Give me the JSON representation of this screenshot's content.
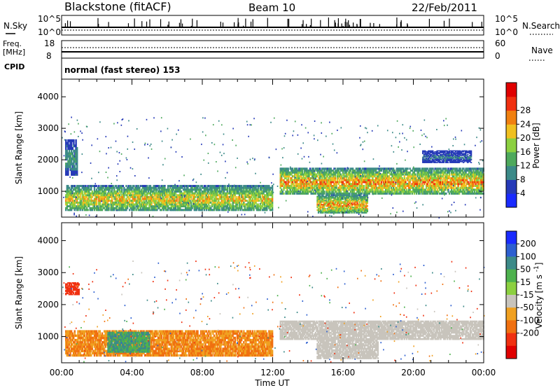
{
  "header": {
    "station": "Blackstone (fitACF)",
    "beam": "Beam 10",
    "date": "22/Feb/2011"
  },
  "nsky_panel": {
    "left_label": "N.Sky",
    "right_label": "N.Search",
    "left_ticks": [
      "10^5",
      "10^0"
    ],
    "right_ticks": [
      "10^5",
      "10^0"
    ]
  },
  "freq_panel": {
    "left_label_1": "Freq.",
    "left_label_2": "[MHz]",
    "right_label": "Nave",
    "left_ticks": [
      "18",
      "8"
    ],
    "right_ticks": [
      "60",
      "0"
    ]
  },
  "cpid": {
    "label": "CPID",
    "value": "normal (fast stereo) 153"
  },
  "chart_data": [
    {
      "type": "heatmap",
      "title": "",
      "xlabel": "",
      "ylabel": "Slant Range [km]",
      "xlim": [
        0,
        24
      ],
      "ylim": [
        180,
        4560
      ],
      "yticks": [
        1000,
        2000,
        3000,
        4000
      ],
      "colorbar": {
        "label": "Power [dB]",
        "ticks": [
          "4",
          "8",
          "12",
          "16",
          "20",
          "24",
          "28"
        ],
        "colors": [
          "#1a2bff",
          "#263ab8",
          "#3c8a88",
          "#4ea95c",
          "#8cd040",
          "#f0c020",
          "#f08010",
          "#f03010",
          "#e00000"
        ]
      },
      "echo_regions_km": [
        {
          "t0": 0.2,
          "t1": 12.0,
          "r_lo": 380,
          "r_hi": 1200,
          "peak_db": 24
        },
        {
          "t0": 0.2,
          "t1": 0.9,
          "r_lo": 1500,
          "r_hi": 2650,
          "peak_db": 12
        },
        {
          "t0": 12.4,
          "t1": 24.0,
          "r_lo": 900,
          "r_hi": 1750,
          "peak_db": 28
        },
        {
          "t0": 14.5,
          "t1": 17.4,
          "r_lo": 300,
          "r_hi": 900,
          "peak_db": 28
        },
        {
          "t0": 20.5,
          "t1": 23.3,
          "r_lo": 1900,
          "r_hi": 2300,
          "peak_db": 8
        }
      ]
    },
    {
      "type": "heatmap",
      "title": "",
      "xlabel": "Time UT",
      "ylabel": "Slant Range [km]",
      "xlim": [
        0,
        24
      ],
      "ylim": [
        180,
        4560
      ],
      "yticks": [
        1000,
        2000,
        3000,
        4000
      ],
      "xticks": [
        "00:00",
        "04:00",
        "08:00",
        "12:00",
        "16:00",
        "20:00",
        "00:00"
      ],
      "colorbar": {
        "label": "Velocity [m s^-1]",
        "ticks": [
          "200",
          "100",
          "50",
          "15",
          "-15",
          "-50",
          "-100",
          "-200"
        ],
        "colors": [
          "#1a2bff",
          "#2d5fd0",
          "#3c8a88",
          "#4eb24e",
          "#8cd040",
          "#c8c4bc",
          "#f0a020",
          "#f07010",
          "#f03010",
          "#e00000"
        ]
      },
      "echo_regions_km": [
        {
          "t0": 0.2,
          "t1": 12.0,
          "r_lo": 380,
          "r_hi": 1200,
          "vel": -50
        },
        {
          "t0": 2.6,
          "t1": 5.0,
          "r_lo": 500,
          "r_hi": 1150,
          "vel": 50
        },
        {
          "t0": 0.2,
          "t1": 1.0,
          "r_lo": 2300,
          "r_hi": 2700,
          "vel": -150
        },
        {
          "t0": 12.4,
          "t1": 24.0,
          "r_lo": 900,
          "r_hi": 1500,
          "vel": 0
        },
        {
          "t0": 14.5,
          "t1": 18.0,
          "r_lo": 300,
          "r_hi": 900,
          "vel": 0
        }
      ]
    }
  ]
}
